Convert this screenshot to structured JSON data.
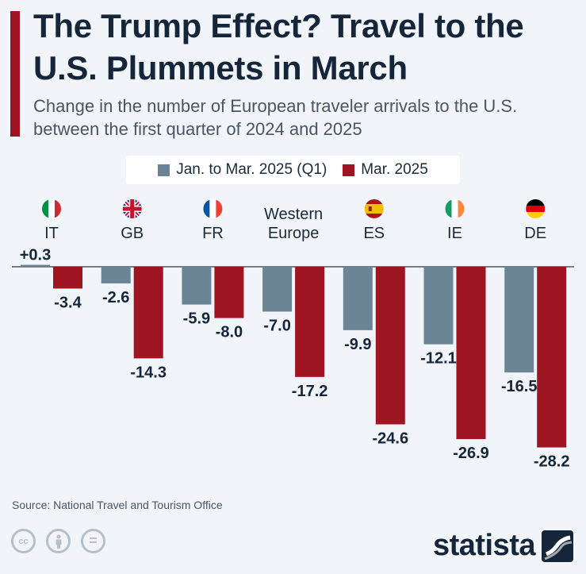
{
  "header": {
    "title": "The Trump Effect? Travel to the U.S. Plummets in March",
    "subtitle": "Change in the number of European traveler arrivals to the U.S. between the first quarter of 2024 and 2025"
  },
  "legend": {
    "q1_label": "Jan. to Mar. 2025 (Q1)",
    "mar_label": "Mar. 2025"
  },
  "colors": {
    "q1": "#6b8596",
    "mar": "#9e1420",
    "accent": "#9e1420",
    "text": "#15263a"
  },
  "chart_data": {
    "type": "bar",
    "categories": [
      "IT",
      "GB",
      "FR",
      "Western Europe",
      "ES",
      "IE",
      "DE"
    ],
    "category_labels": [
      [
        "IT"
      ],
      [
        "GB"
      ],
      [
        "FR"
      ],
      [
        "Western",
        "Europe"
      ],
      [
        "ES"
      ],
      [
        "IE"
      ],
      [
        "DE"
      ]
    ],
    "flags": [
      "italy-flag-icon",
      "uk-flag-icon",
      "france-flag-icon",
      "",
      "spain-flag-icon",
      "ireland-flag-icon",
      "germany-flag-icon"
    ],
    "series": [
      {
        "name": "Jan. to Mar. 2025 (Q1)",
        "values": [
          0.3,
          -2.6,
          -5.9,
          -7.0,
          -9.9,
          -12.1,
          -16.5
        ],
        "labels": [
          "+0.3",
          "-2.6",
          "-5.9",
          "-7.0",
          "-9.9",
          "-12.1",
          "-16.5"
        ]
      },
      {
        "name": "Mar. 2025",
        "values": [
          -3.4,
          -14.3,
          -8.0,
          -17.2,
          -24.6,
          -26.9,
          -28.2
        ],
        "labels": [
          "-3.4",
          "-14.3",
          "-8.0",
          "-17.2",
          "-24.6",
          "-26.9",
          "-28.2"
        ]
      }
    ],
    "ylim": [
      -30,
      1
    ],
    "legend_position": "top-center",
    "grid": false
  },
  "footer": {
    "source": "Source: National Travel and Tourism Office",
    "logo": "statista",
    "cc_icons": [
      "cc",
      "by",
      "="
    ]
  }
}
